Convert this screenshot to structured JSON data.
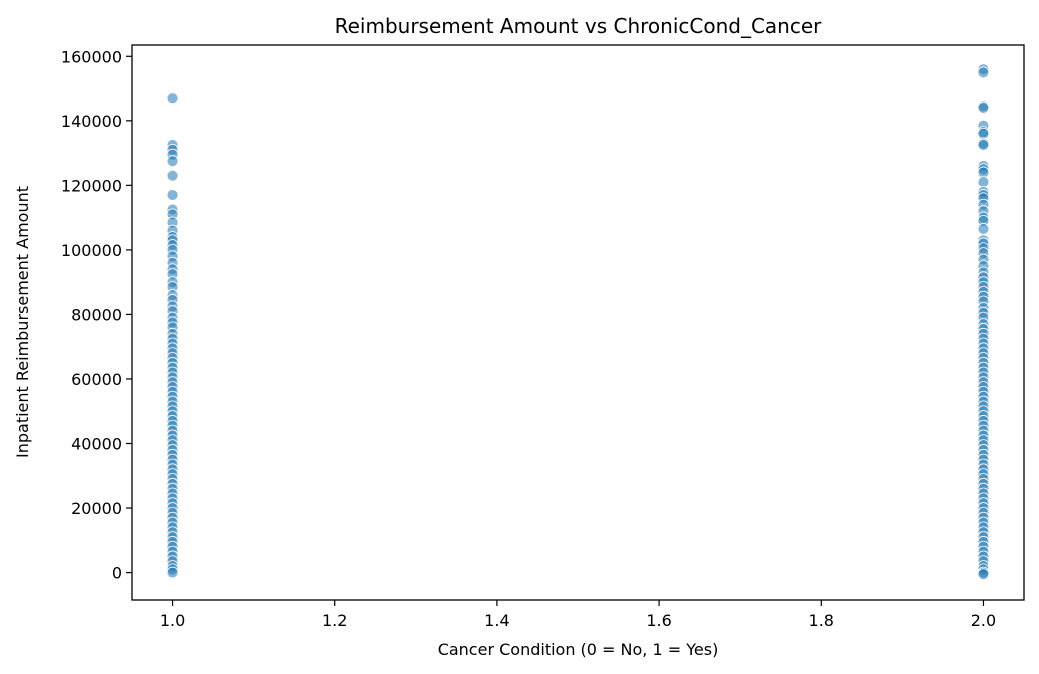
{
  "chart_data": {
    "type": "scatter",
    "title": "Reimbursement Amount vs ChronicCond_Cancer",
    "xlabel": "Cancer Condition (0 = No, 1 = Yes)",
    "ylabel": "Inpatient Reimbursement Amount",
    "xlim": [
      0.95,
      2.05
    ],
    "ylim": [
      -8500,
      163500
    ],
    "xticks": [
      1.0,
      1.2,
      1.4,
      1.6,
      1.8,
      2.0
    ],
    "xtick_labels": [
      "1.0",
      "1.2",
      "1.4",
      "1.6",
      "1.8",
      "2.0"
    ],
    "yticks": [
      0,
      20000,
      40000,
      60000,
      80000,
      100000,
      120000,
      140000,
      160000
    ],
    "ytick_labels": [
      "0",
      "20000",
      "40000",
      "60000",
      "80000",
      "100000",
      "120000",
      "140000",
      "160000"
    ],
    "grid": false,
    "point_color": "#1f77b4",
    "series": [
      {
        "x": 1.0,
        "values": [
          147000,
          132500,
          131000,
          129500,
          127500,
          123000,
          117000,
          112500,
          111000,
          108500,
          106000,
          104000,
          103000,
          101500,
          100000,
          98000,
          96000,
          94000,
          92500,
          90000,
          88500,
          86000,
          84500,
          82500,
          81000,
          79000,
          77500,
          76000,
          74000,
          72500,
          71000,
          69500,
          68000,
          66500,
          65000,
          63500,
          62000,
          60500,
          59000,
          57500,
          56000,
          54500,
          53000,
          51500,
          50000,
          48500,
          47000,
          45500,
          44000,
          42500,
          41000,
          39500,
          38000,
          36500,
          35000,
          33500,
          32000,
          30500,
          29000,
          27500,
          26000,
          24500,
          23000,
          21500,
          20000,
          18500,
          17000,
          15500,
          14000,
          12500,
          11000,
          9500,
          8000,
          6500,
          5000,
          3500,
          2000,
          1000,
          0
        ]
      },
      {
        "x": 2.0,
        "values": [
          156000,
          155000,
          144500,
          144000,
          138500,
          136500,
          136000,
          133000,
          132500,
          126000,
          125000,
          124000,
          121000,
          118000,
          117000,
          116000,
          114000,
          112000,
          110000,
          109000,
          106500,
          103000,
          102000,
          100500,
          99000,
          97000,
          95000,
          93000,
          91500,
          90000,
          88500,
          87000,
          85500,
          84000,
          82000,
          80500,
          79000,
          77000,
          75500,
          74000,
          72500,
          71000,
          69500,
          68000,
          66500,
          65000,
          63500,
          62000,
          60500,
          59000,
          57500,
          56000,
          54500,
          53000,
          51500,
          50000,
          48500,
          47000,
          45500,
          44000,
          42500,
          41000,
          39500,
          38000,
          36500,
          35000,
          33500,
          32000,
          30500,
          29000,
          27500,
          26000,
          24500,
          23000,
          21500,
          20000,
          18500,
          17000,
          15500,
          14000,
          12500,
          11000,
          9500,
          8000,
          6500,
          5000,
          3500,
          2000,
          1000,
          0,
          -500
        ]
      }
    ]
  }
}
